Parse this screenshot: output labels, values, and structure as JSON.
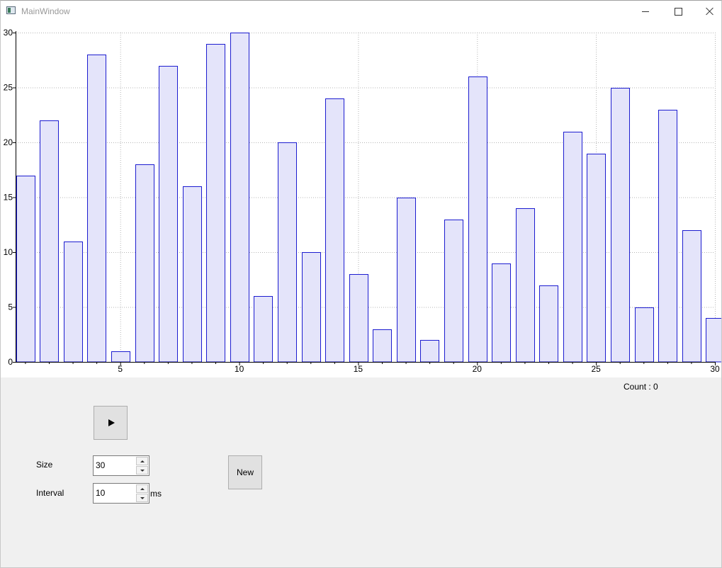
{
  "window": {
    "title": "MainWindow"
  },
  "colors": {
    "bar_fill": "#e4e4fa",
    "bar_stroke": "#1c1cd0",
    "grid": "#b4b4b4",
    "axis": "#000000"
  },
  "chart_data": {
    "type": "bar",
    "x": [
      1,
      2,
      3,
      4,
      5,
      6,
      7,
      8,
      9,
      10,
      11,
      12,
      13,
      14,
      15,
      16,
      17,
      18,
      19,
      20,
      21,
      22,
      23,
      24,
      25,
      26,
      27,
      28,
      29,
      30
    ],
    "values": [
      17,
      22,
      11,
      28,
      1,
      18,
      27,
      16,
      29,
      30,
      6,
      20,
      10,
      24,
      8,
      3,
      15,
      2,
      13,
      26,
      9,
      14,
      7,
      21,
      19,
      25,
      5,
      23,
      12,
      4
    ],
    "xlim": [
      0.6,
      30.0
    ],
    "ylim": [
      0,
      30
    ],
    "x_ticks": [
      5,
      10,
      15,
      20,
      25,
      30
    ],
    "y_ticks": [
      0,
      5,
      10,
      15,
      20,
      25,
      30
    ],
    "grid": true,
    "title": "",
    "xlabel": "",
    "ylabel": ""
  },
  "status": {
    "count_label": "Count : 0"
  },
  "controls": {
    "play_icon": "play-icon",
    "size_label": "Size",
    "size_value": "30",
    "interval_label": "Interval",
    "interval_value": "10",
    "interval_unit": "ms",
    "new_label": "New"
  }
}
